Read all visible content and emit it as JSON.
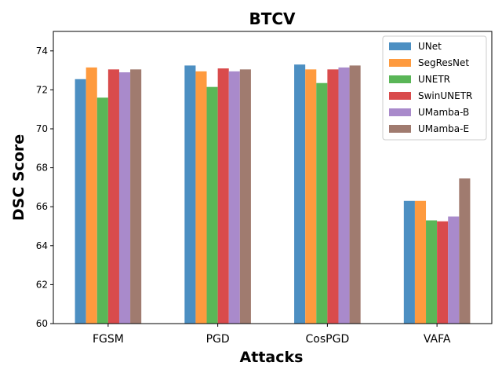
{
  "chart_data": {
    "type": "bar",
    "title": "BTCV",
    "xlabel": "Attacks",
    "ylabel": "DSC Score",
    "ylim": [
      60,
      75
    ],
    "yticks": [
      60,
      62,
      64,
      66,
      68,
      70,
      72,
      74
    ],
    "categories": [
      "FGSM",
      "PGD",
      "CosPGD",
      "VAFA"
    ],
    "legend_position": "top-right",
    "series": [
      {
        "name": "UNet",
        "color": "#4c8fc2",
        "values": [
          72.55,
          73.25,
          73.3,
          66.3
        ]
      },
      {
        "name": "SegResNet",
        "color": "#fe9a3e",
        "values": [
          73.15,
          72.95,
          73.05,
          66.3
        ]
      },
      {
        "name": "UNETR",
        "color": "#5ab657",
        "values": [
          71.6,
          72.15,
          72.35,
          65.3
        ]
      },
      {
        "name": "SwinUNETR",
        "color": "#d94b4c",
        "values": [
          73.05,
          73.1,
          73.05,
          65.25
        ]
      },
      {
        "name": "UMamba-B",
        "color": "#a98acb",
        "values": [
          72.9,
          72.95,
          73.15,
          65.5
        ]
      },
      {
        "name": "UMamba-E",
        "color": "#a07b6f",
        "values": [
          73.05,
          73.05,
          73.25,
          67.45
        ]
      }
    ]
  }
}
